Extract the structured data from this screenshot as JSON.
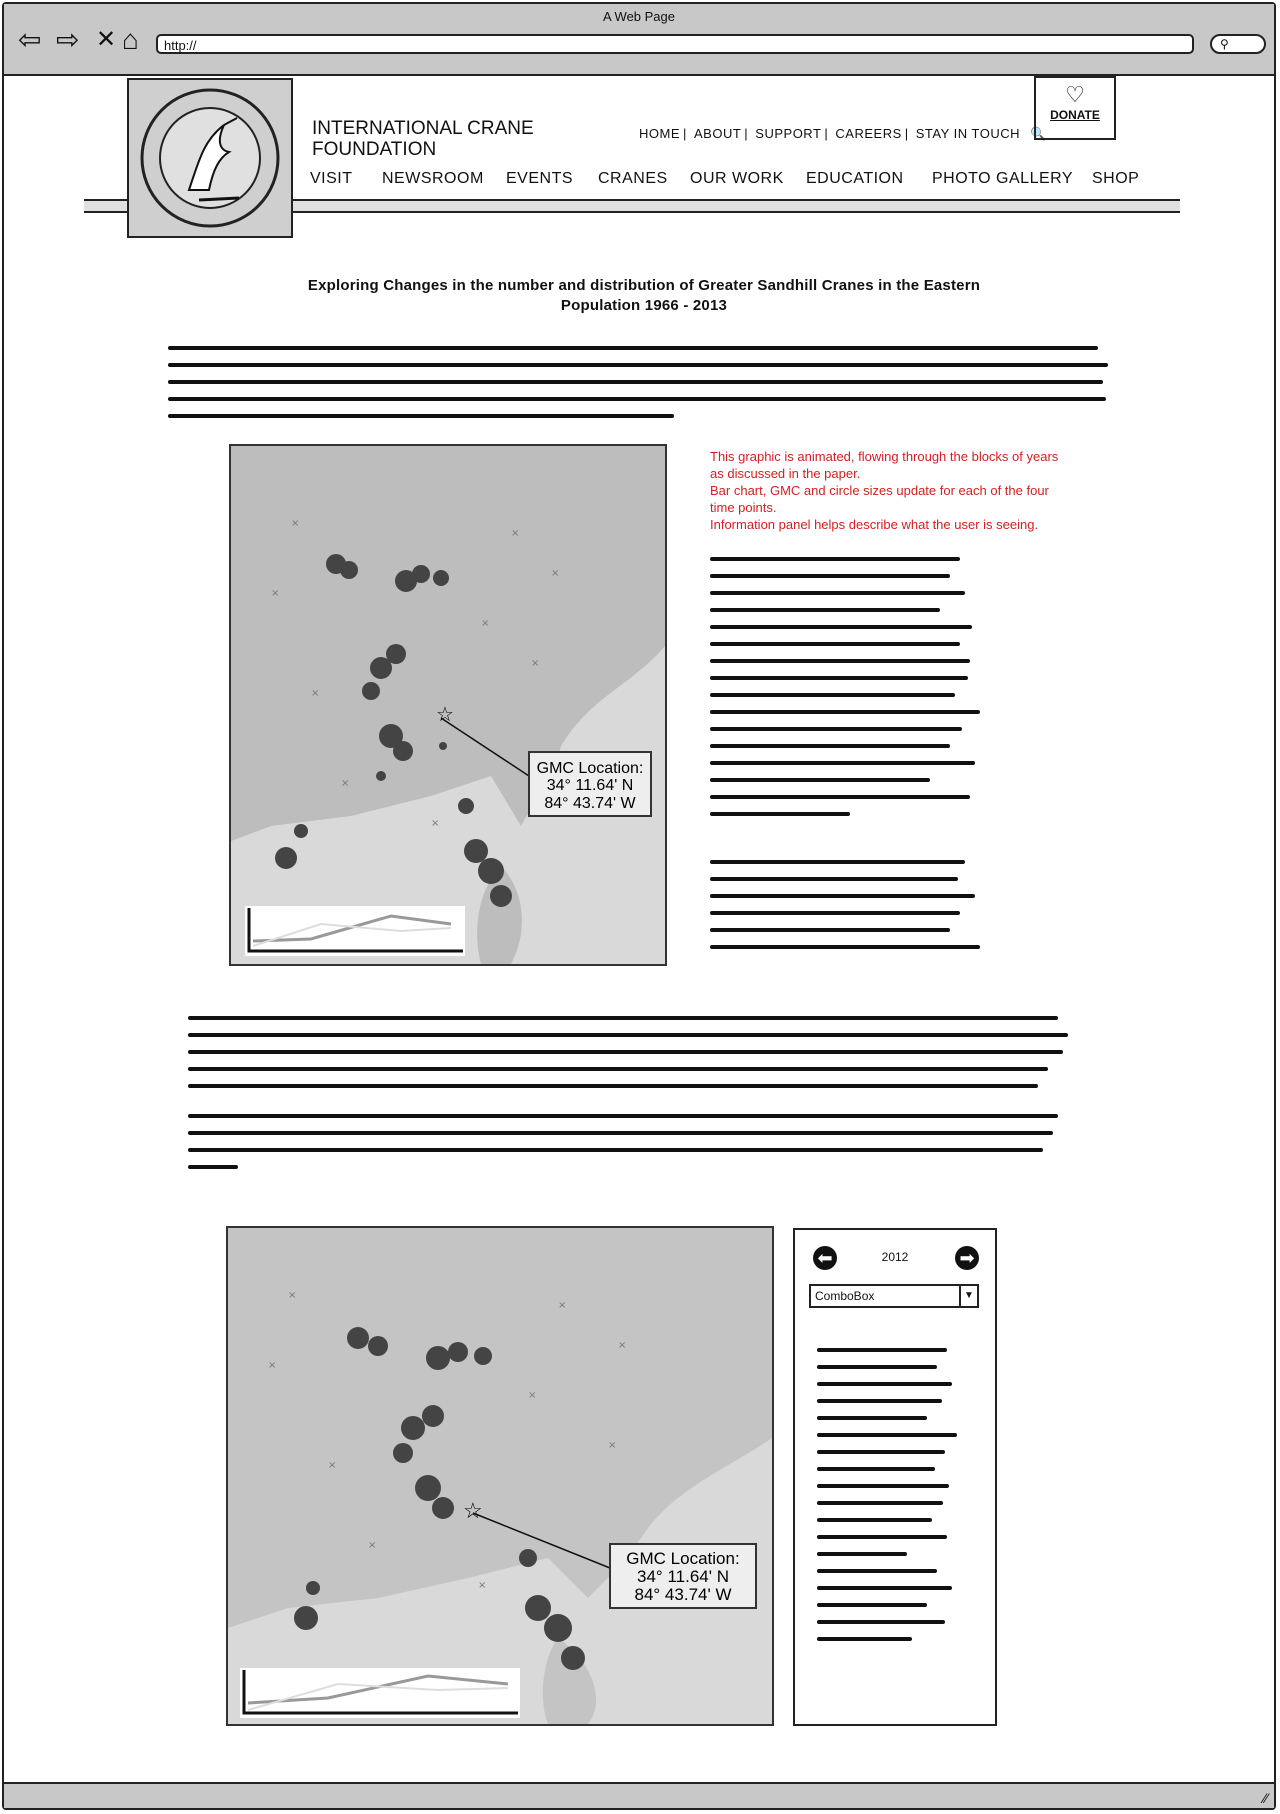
{
  "browser": {
    "window_title": "A Web Page",
    "url": "http://",
    "search_icon": "search-icon"
  },
  "site": {
    "logo_text": "INTERNATIONAL CRANE FOUNDATION",
    "org_name_line1": "INTERNATIONAL CRANE",
    "org_name_line2": "FOUNDATION",
    "utility_nav": [
      "HOME",
      "ABOUT",
      "SUPPORT",
      "CAREERS",
      "STAY IN TOUCH"
    ],
    "donate_label": "DONATE",
    "main_nav": [
      "VISIT",
      "NEWSROOM",
      "EVENTS",
      "CRANES",
      "OUR WORK",
      "EDUCATION",
      "PHOTO GALLERY",
      "SHOP"
    ]
  },
  "content": {
    "title_line1": "Exploring Changes in the number and distribution of Greater Sandhill Cranes in the Eastern",
    "title_line2": "Population 1966 - 2013",
    "annotation": [
      "This graphic is animated, flowing through the blocks of years",
      "as discussed in the paper.",
      "Bar chart, GMC and circle sizes update for each of the four",
      "time points.",
      "Information panel helps describe what the user is seeing."
    ]
  },
  "map": {
    "gmc_label_line1": "GMC Location:",
    "gmc_label_line2": "34° 11.64' N",
    "gmc_label_line3": "84° 43.74' W"
  },
  "panel": {
    "year": "2012",
    "combo_value": "ComboBox"
  },
  "colors": {
    "chrome": "#c8c8c8",
    "annotation": "#d42020",
    "map_bg": "#d9d9d9"
  }
}
